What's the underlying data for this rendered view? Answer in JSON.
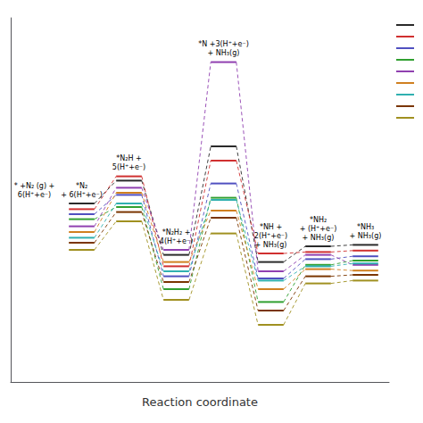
{
  "chart_data": {
    "type": "line",
    "xlabel": "Reaction coordinate",
    "categories": [
      "* +N₂ (g) +\n6(H⁺+e⁻)",
      "*N₂\n+ 6(H⁺+e⁻)",
      "*N₂H +\n5(H⁺+e⁻)",
      "*N₂H₂ +\n4(H⁺+e⁻)",
      "*N +3(H⁺+e⁻)\n+ NH₃(g)",
      "*NH +\n2(H⁺+e⁻)\n+ NH₃(g)",
      "*NH₂\n+ (H⁺+e⁻)\n+ NH₃(g)",
      "*NH₃\n+ NH₃(g)"
    ],
    "series": [
      {
        "color": "#2a2a2a",
        "values": [
          null,
          3.3,
          3.62,
          2.58,
          4.1,
          2.48,
          2.7,
          2.72
        ]
      },
      {
        "color": "#d03030",
        "values": [
          null,
          3.22,
          3.68,
          2.42,
          3.9,
          2.6,
          2.62,
          2.64
        ]
      },
      {
        "color": "#5050c0",
        "values": [
          null,
          3.15,
          3.42,
          2.28,
          3.58,
          2.25,
          2.52,
          2.56
        ]
      },
      {
        "color": "#30a030",
        "values": [
          null,
          3.08,
          3.25,
          2.1,
          3.38,
          1.92,
          2.44,
          2.5
        ]
      },
      {
        "color": "#9040b0",
        "values": [
          null,
          2.98,
          3.52,
          2.65,
          5.28,
          2.35,
          2.58,
          2.44
        ]
      },
      {
        "color": "#d08020",
        "values": [
          null,
          2.9,
          3.45,
          2.48,
          3.2,
          2.1,
          2.38,
          2.36
        ]
      },
      {
        "color": "#30b0b0",
        "values": [
          null,
          2.82,
          3.3,
          2.35,
          3.35,
          2.22,
          2.42,
          2.46
        ]
      },
      {
        "color": "#7a3500",
        "values": [
          null,
          2.75,
          3.18,
          2.2,
          3.1,
          1.8,
          2.28,
          2.3
        ]
      },
      {
        "color": "#a09020",
        "values": [
          null,
          2.65,
          3.05,
          1.95,
          2.88,
          1.6,
          2.18,
          2.22
        ]
      }
    ],
    "ylim": [
      0.8,
      5.9
    ],
    "tick_labels": false,
    "legend": "upper right"
  }
}
